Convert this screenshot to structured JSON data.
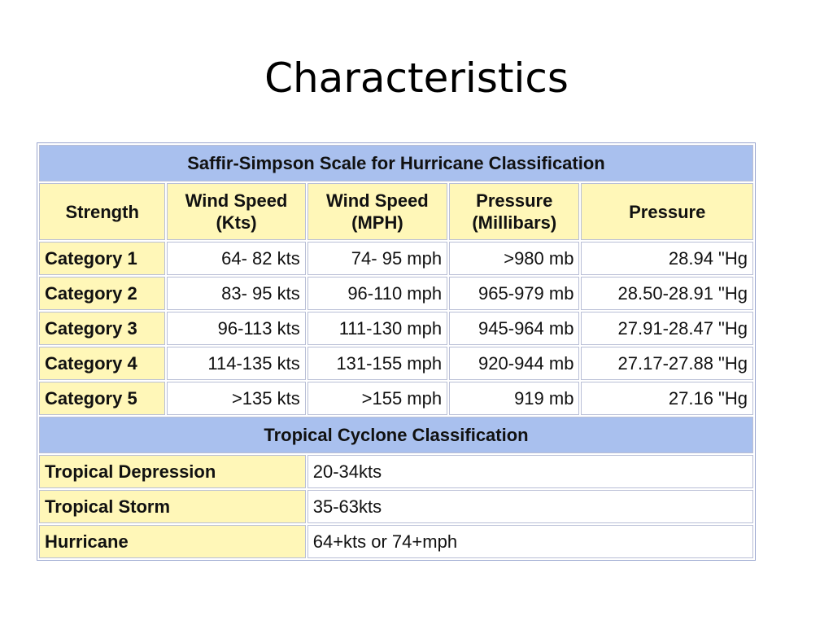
{
  "slide": {
    "title": "Characteristics"
  },
  "table": {
    "caption": "Saffir-Simpson Scale for Hurricane Classification",
    "headers": [
      [
        "Strength"
      ],
      [
        "Wind Speed",
        "(Kts)"
      ],
      [
        "Wind Speed",
        "(MPH)"
      ],
      [
        "Pressure",
        "(Millibars)"
      ],
      [
        "Pressure"
      ]
    ],
    "rows": [
      {
        "strength": "Category 1",
        "kts": "64- 82 kts",
        "mph": "74- 95 mph",
        "mb": ">980 mb",
        "hg": "28.94 \"Hg"
      },
      {
        "strength": "Category 2",
        "kts": "83- 95 kts",
        "mph": "96-110 mph",
        "mb": "965-979 mb",
        "hg": "28.50-28.91 \"Hg"
      },
      {
        "strength": "Category 3",
        "kts": "96-113 kts",
        "mph": "111-130 mph",
        "mb": "945-964 mb",
        "hg": "27.91-28.47 \"Hg"
      },
      {
        "strength": "Category 4",
        "kts": "114-135 kts",
        "mph": "131-155 mph",
        "mb": "920-944 mb",
        "hg": "27.17-27.88 \"Hg"
      },
      {
        "strength": "Category 5",
        "kts": ">135 kts",
        "mph": ">155 mph",
        "mb": "919 mb",
        "hg": "27.16 \"Hg"
      }
    ],
    "tropical_caption": "Tropical Cyclone Classification",
    "tropical_rows": [
      {
        "label": "Tropical Depression",
        "value": "20-34kts"
      },
      {
        "label": "Tropical Storm",
        "value": "35-63kts"
      },
      {
        "label": "Hurricane",
        "value": "64+kts or 74+mph"
      }
    ],
    "colors": {
      "header_blue": "#a9c0ee",
      "label_yellow": "#fff7b8",
      "border": "#9aa6cf"
    }
  }
}
